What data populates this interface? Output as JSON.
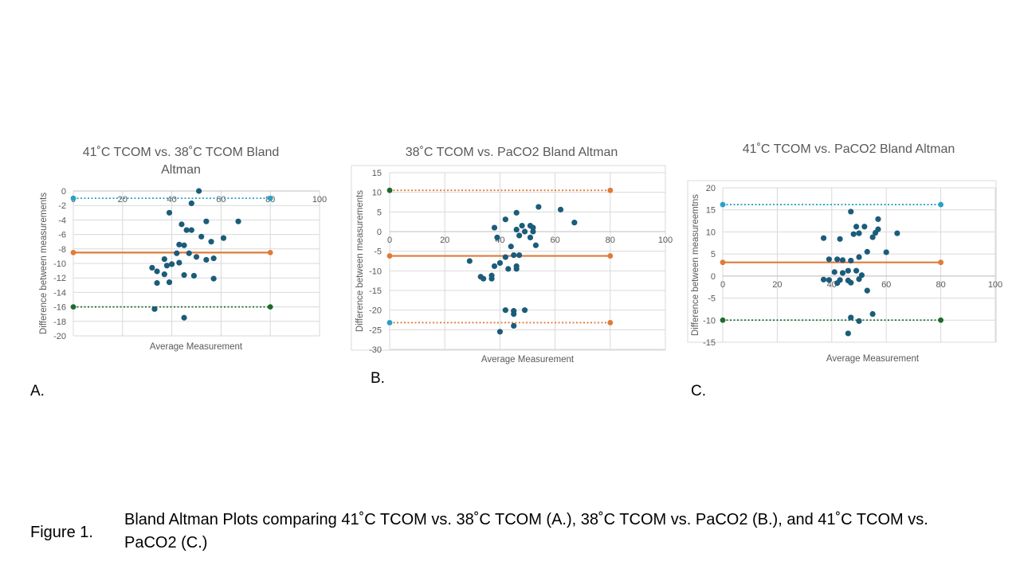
{
  "figure": {
    "label": "Figure 1.",
    "caption": "Bland Altman Plots comparing 41˚C TCOM vs. 38˚C TCOM (A.), 38˚C TCOM vs. PaCO2 (B.), and 41˚C TCOM vs. PaCO2 (C.)"
  },
  "panels": [
    {
      "letter": "A."
    },
    {
      "letter": "B."
    },
    {
      "letter": "C."
    }
  ],
  "colors": {
    "point": "#1b5c7a",
    "mean_line": "#e07b39",
    "upper_A": "#2aa0c8",
    "lower_A": "#1e6b2c",
    "grid": "#d9d9d9",
    "axis_text": "#595959",
    "title_text": "#595959"
  },
  "chart_data": [
    {
      "type": "scatter",
      "title": "41˚C TCOM vs. 38˚C TCOM Bland Altman",
      "xlabel": "Average Measurement",
      "ylabel": "Difference between measurements",
      "xlim": [
        0,
        100
      ],
      "ylim": [
        -20,
        0
      ],
      "x_ticks": [
        "0",
        "20",
        "40",
        "60",
        "80",
        "100"
      ],
      "y_ticks": [
        "0",
        "-2",
        "-4",
        "-6",
        "-8",
        "-10",
        "-12",
        "-14",
        "-16",
        "-18",
        "-20"
      ],
      "x_tick_values": [
        0,
        20,
        40,
        60,
        80,
        100
      ],
      "y_tick_values": [
        0,
        -2,
        -4,
        -6,
        -8,
        -10,
        -12,
        -14,
        -16,
        -18,
        -20
      ],
      "grid": true,
      "x_axis_at": 0,
      "points": [
        [
          51,
          0
        ],
        [
          39,
          -3
        ],
        [
          48,
          -1.7
        ],
        [
          44,
          -4.6
        ],
        [
          54,
          -4.2
        ],
        [
          67,
          -4.2
        ],
        [
          46,
          -5.4
        ],
        [
          48,
          -5.4
        ],
        [
          52,
          -6.3
        ],
        [
          61,
          -6.5
        ],
        [
          56,
          -7
        ],
        [
          43,
          -7.4
        ],
        [
          45,
          -7.5
        ],
        [
          42,
          -8.6
        ],
        [
          47,
          -8.6
        ],
        [
          50,
          -9.1
        ],
        [
          54,
          -9.5
        ],
        [
          57,
          -9.3
        ],
        [
          37,
          -9.4
        ],
        [
          43,
          -9.9
        ],
        [
          40,
          -10.1
        ],
        [
          38,
          -10.3
        ],
        [
          32,
          -10.6
        ],
        [
          34,
          -11.1
        ],
        [
          37,
          -11.5
        ],
        [
          45,
          -11.6
        ],
        [
          49,
          -11.7
        ],
        [
          57,
          -12.1
        ],
        [
          34,
          -12.7
        ],
        [
          39,
          -12.6
        ],
        [
          33,
          -16.3
        ],
        [
          45,
          -17.5
        ]
      ],
      "ref_lines": [
        {
          "name": "upper",
          "y": -1,
          "x": [
            0,
            80
          ],
          "style": "dotted",
          "color": "#2aa0c8"
        },
        {
          "name": "mean",
          "y": -8.5,
          "x": [
            0,
            80
          ],
          "style": "solid",
          "color": "#e07b39"
        },
        {
          "name": "lower",
          "y": -16,
          "x": [
            0,
            80
          ],
          "style": "dotted",
          "color": "#1e6b2c"
        }
      ]
    },
    {
      "type": "scatter",
      "title": "38˚C TCOM vs. PaCO2 Bland Altman",
      "xlabel": "Average Measurement",
      "ylabel": "Difference between measurements",
      "xlim": [
        0,
        100
      ],
      "ylim": [
        -30,
        15
      ],
      "x_ticks": [
        "0",
        "20",
        "40",
        "60",
        "80",
        "100"
      ],
      "y_ticks": [
        "15",
        "10",
        "5",
        "0",
        "-5",
        "-10",
        "-15",
        "-20",
        "-25",
        "-30"
      ],
      "x_tick_values": [
        0,
        20,
        40,
        60,
        80,
        100
      ],
      "y_tick_values": [
        15,
        10,
        5,
        0,
        -5,
        -10,
        -15,
        -20,
        -25,
        -30
      ],
      "grid": true,
      "x_axis_at": 0,
      "points": [
        [
          54,
          6.3
        ],
        [
          62,
          5.6
        ],
        [
          46,
          4.8
        ],
        [
          67,
          2.3
        ],
        [
          42,
          3.1
        ],
        [
          38,
          1
        ],
        [
          48,
          1.5
        ],
        [
          51,
          1.5
        ],
        [
          52,
          1
        ],
        [
          46,
          0.5
        ],
        [
          49,
          0
        ],
        [
          52,
          0
        ],
        [
          47,
          -1
        ],
        [
          39,
          -1.5
        ],
        [
          51,
          -1.5
        ],
        [
          53,
          -3.5
        ],
        [
          44,
          -3.8
        ],
        [
          47,
          -6
        ],
        [
          45,
          -6
        ],
        [
          42,
          -6.5
        ],
        [
          29,
          -7.5
        ],
        [
          40,
          -8
        ],
        [
          38,
          -8.8
        ],
        [
          46,
          -8.8
        ],
        [
          43,
          -9.5
        ],
        [
          46,
          -9.5
        ],
        [
          33,
          -11.5
        ],
        [
          34,
          -12
        ],
        [
          37,
          -12
        ],
        [
          37,
          -11.2
        ],
        [
          42,
          -20
        ],
        [
          45,
          -20.2
        ],
        [
          49,
          -20
        ],
        [
          45,
          -21
        ],
        [
          45,
          -24
        ],
        [
          40,
          -25.5
        ]
      ],
      "ref_lines": [
        {
          "name": "upper",
          "y": 10.5,
          "x": [
            0,
            80
          ],
          "style": "dotted",
          "color": "#e07b39"
        },
        {
          "name": "mean",
          "y": -6.2,
          "x": [
            0,
            80
          ],
          "style": "solid",
          "color": "#e07b39"
        },
        {
          "name": "lower",
          "y": -23.2,
          "x": [
            0,
            80
          ],
          "style": "dotted",
          "color": "#e07b39"
        }
      ],
      "endpoint_colors": [
        "#1e6b2c",
        "#e07b39",
        "#2aa0c8"
      ]
    },
    {
      "type": "scatter",
      "title": "41˚C TCOM vs. PaCO2 Bland Altman",
      "xlabel": "Average Measurement",
      "ylabel": "Difference between measureemtns",
      "xlim": [
        0,
        100
      ],
      "ylim": [
        -15,
        20
      ],
      "x_ticks": [
        "0",
        "20",
        "40",
        "60",
        "80",
        "100"
      ],
      "y_ticks": [
        "20",
        "15",
        "10",
        "5",
        "0",
        "-5",
        "-10",
        "-15"
      ],
      "x_tick_values": [
        0,
        20,
        40,
        60,
        80,
        100
      ],
      "y_tick_values": [
        20,
        15,
        10,
        5,
        0,
        -5,
        -10,
        -15
      ],
      "grid": true,
      "x_axis_at": 0,
      "points": [
        [
          47,
          14.6
        ],
        [
          57,
          12.9
        ],
        [
          49,
          11.2
        ],
        [
          52,
          11.2
        ],
        [
          57,
          10.6
        ],
        [
          64,
          9.7
        ],
        [
          50,
          9.7
        ],
        [
          48,
          9.5
        ],
        [
          56,
          9.8
        ],
        [
          55,
          8.8
        ],
        [
          37,
          8.6
        ],
        [
          43,
          8.4
        ],
        [
          60,
          5.4
        ],
        [
          53,
          5.5
        ],
        [
          50,
          4.3
        ],
        [
          39,
          3.8
        ],
        [
          42,
          3.8
        ],
        [
          44,
          3.6
        ],
        [
          47,
          3.5
        ],
        [
          46,
          1.2
        ],
        [
          41,
          0.9
        ],
        [
          51,
          0.2
        ],
        [
          39,
          -0.9
        ],
        [
          37,
          -0.8
        ],
        [
          43,
          -0.9
        ],
        [
          46,
          -1
        ],
        [
          47,
          -1.5
        ],
        [
          42,
          -1.6
        ],
        [
          50,
          -0.7
        ],
        [
          53,
          -3.3
        ],
        [
          55,
          -8.6
        ],
        [
          47,
          -9.4
        ],
        [
          50,
          -10.2
        ],
        [
          46,
          -13
        ],
        [
          49,
          1.2
        ],
        [
          44,
          0.7
        ]
      ],
      "ref_lines": [
        {
          "name": "upper",
          "y": 16.2,
          "x": [
            0,
            80
          ],
          "style": "dotted",
          "color": "#2aa0c8"
        },
        {
          "name": "mean",
          "y": 3.1,
          "x": [
            0,
            80
          ],
          "style": "solid",
          "color": "#e07b39"
        },
        {
          "name": "lower",
          "y": -10,
          "x": [
            0,
            80
          ],
          "style": "dotted",
          "color": "#1e6b2c"
        }
      ]
    }
  ]
}
